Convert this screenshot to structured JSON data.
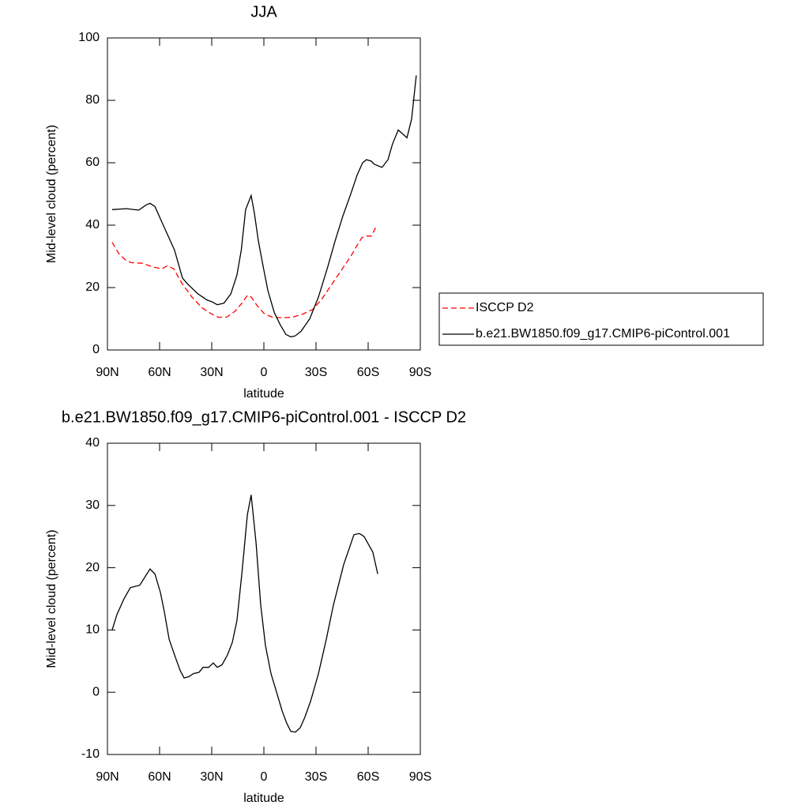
{
  "chart_data": [
    {
      "type": "line",
      "title": "JJA",
      "x_label": "latitude",
      "y_label": "Mid-level cloud (percent)",
      "xlim": [
        90,
        -90
      ],
      "xticks": [
        {
          "value": 90,
          "label": "90N"
        },
        {
          "value": 60,
          "label": "60N"
        },
        {
          "value": 30,
          "label": "30N"
        },
        0,
        {
          "value": -30,
          "label": "30S"
        },
        {
          "value": -60,
          "label": "60S"
        },
        {
          "value": -90,
          "label": "90S"
        }
      ],
      "ylim": [
        0,
        100
      ],
      "yticks": [
        0,
        20,
        40,
        60,
        80,
        100
      ],
      "legend": "right",
      "series": [
        {
          "name": "ISCCP D2",
          "color": "#ff0000",
          "dashed": true,
          "x": [
            87.3,
            83.6,
            80,
            76.4,
            70,
            63.2,
            58.6,
            55.5,
            51.8,
            47.3,
            41.4,
            35.5,
            30,
            26.4,
            21.4,
            16.4,
            12.7,
            9.5,
            7.3,
            3.6,
            -0.5,
            -5,
            -10.5,
            -16.4,
            -22.3,
            -28.2,
            -33.6,
            -39,
            -44.5,
            -50,
            -53.6,
            -56.4,
            -59,
            -61.8,
            -63.2,
            -65
          ],
          "values": [
            34.5,
            31,
            29,
            28,
            27.8,
            26.5,
            26,
            27,
            26,
            21.5,
            17,
            13.5,
            11.5,
            10.5,
            10.5,
            12.5,
            15,
            17.5,
            17,
            14,
            11.5,
            10.5,
            10.3,
            10.5,
            11.5,
            13,
            16.5,
            21,
            25.5,
            30,
            33.5,
            36,
            36.5,
            36.5,
            38,
            40
          ]
        },
        {
          "name": "b.e21.BW1850.f09_g17.CMIP6-piControl.001",
          "color": "#000000",
          "dashed": false,
          "x": [
            87.3,
            79,
            72,
            67.7,
            65.5,
            62.7,
            59.5,
            51.4,
            46.8,
            43.6,
            38,
            32.7,
            30,
            26.8,
            23,
            19,
            15.5,
            13,
            10.5,
            7.3,
            5.5,
            3.2,
            0.5,
            -2.3,
            -6,
            -9.5,
            -12.7,
            -15.5,
            -18,
            -21.4,
            -26.4,
            -31.4,
            -36.4,
            -41,
            -45.5,
            -50,
            -53.6,
            -56.8,
            -59,
            -61.8,
            -63.6,
            -68,
            -71.4,
            -74,
            -77.3,
            -82.3,
            -85,
            -87.7
          ],
          "values": [
            45,
            45.3,
            44.8,
            46.5,
            47,
            46,
            42,
            32,
            23,
            21,
            18,
            16,
            15.5,
            14.5,
            15,
            18,
            24,
            32,
            45,
            49.5,
            44,
            35,
            27,
            19,
            12,
            8,
            5,
            4.2,
            4.5,
            6,
            10,
            17,
            26,
            35,
            43,
            50,
            56,
            60,
            61,
            60.5,
            59.5,
            58.5,
            61,
            66,
            70.5,
            68,
            74,
            88
          ]
        }
      ]
    },
    {
      "type": "line",
      "title": "b.e21.BW1850.f09_g17.CMIP6-piControl.001 - ISCCP D2",
      "x_label": "latitude",
      "y_label": "Mid-level cloud (percent)",
      "xlim": [
        90,
        -90
      ],
      "xticks": [
        {
          "value": 90,
          "label": "90N"
        },
        {
          "value": 60,
          "label": "60N"
        },
        {
          "value": 30,
          "label": "30N"
        },
        0,
        {
          "value": -30,
          "label": "30S"
        },
        {
          "value": -60,
          "label": "60S"
        },
        {
          "value": -90,
          "label": "90S"
        }
      ],
      "ylim": [
        -10,
        40
      ],
      "yticks": [
        -10,
        0,
        10,
        20,
        30,
        40
      ],
      "series": [
        {
          "color": "#000000",
          "dashed": false,
          "x": [
            87.3,
            84.5,
            80.5,
            76.8,
            71.4,
            65.5,
            62.7,
            59.5,
            57.3,
            54.5,
            51.4,
            48.2,
            45.9,
            43.2,
            40.5,
            37.3,
            35,
            31.8,
            29.1,
            26.8,
            24.1,
            20.9,
            18.2,
            15.5,
            12.7,
            9.5,
            7.3,
            4.5,
            1.8,
            -0.9,
            -4.1,
            -7.3,
            -10.5,
            -13.2,
            -15.5,
            -18.2,
            -20.9,
            -23.6,
            -26.8,
            -31.4,
            -35.9,
            -40,
            -45.9,
            -51.8,
            -55,
            -57.7,
            -62.7,
            -65.5
          ],
          "values": [
            10,
            12.5,
            15,
            16.8,
            17.2,
            19.8,
            19,
            16,
            13,
            8.5,
            6,
            3.5,
            2.3,
            2.5,
            3,
            3.2,
            4,
            4,
            4.7,
            4,
            4.4,
            6,
            8,
            11.5,
            19,
            28.5,
            31.7,
            24,
            14,
            7.5,
            3,
            0,
            -3,
            -5,
            -6.3,
            -6.4,
            -5.7,
            -4,
            -1.5,
            3,
            8.5,
            14,
            20.5,
            25.3,
            25.5,
            25,
            22.5,
            19
          ]
        }
      ]
    }
  ]
}
